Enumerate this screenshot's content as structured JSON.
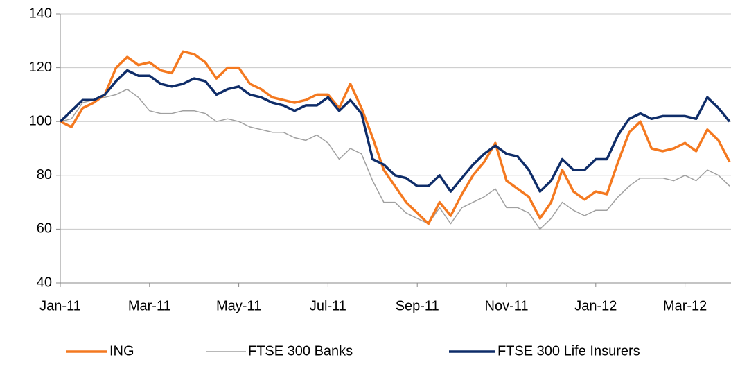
{
  "chart_data": {
    "type": "line",
    "categories": [
      "Jan-11",
      null,
      null,
      null,
      null,
      null,
      null,
      null,
      "Mar-11",
      null,
      null,
      null,
      null,
      null,
      null,
      null,
      "May-11",
      null,
      null,
      null,
      null,
      null,
      null,
      null,
      "Jul-11",
      null,
      null,
      null,
      null,
      null,
      null,
      null,
      "Sep-11",
      null,
      null,
      null,
      null,
      null,
      null,
      null,
      "Nov-11",
      null,
      null,
      null,
      null,
      null,
      null,
      null,
      "Jan-12",
      null,
      null,
      null,
      null,
      null,
      null,
      null,
      "Mar-12",
      null,
      null,
      null,
      null
    ],
    "series": [
      {
        "name": "ING",
        "color": "#f47920",
        "values": [
          100,
          98,
          105,
          107,
          110,
          120,
          124,
          121,
          122,
          119,
          118,
          126,
          125,
          122,
          116,
          120,
          120,
          114,
          112,
          109,
          108,
          107,
          108,
          110,
          110,
          105,
          114,
          105,
          94,
          82,
          76,
          70,
          66,
          62,
          70,
          65,
          73,
          80,
          85,
          92,
          78,
          75,
          72,
          64,
          70,
          82,
          74,
          71,
          74,
          73,
          85,
          96,
          100,
          90,
          89,
          90,
          92,
          89,
          97,
          93,
          85
        ]
      },
      {
        "name": "FTSE 300 Banks",
        "color": "#a0a0a0",
        "values": [
          100,
          101,
          107,
          108,
          109,
          110,
          112,
          109,
          104,
          103,
          103,
          104,
          104,
          103,
          100,
          101,
          100,
          98,
          97,
          96,
          96,
          94,
          93,
          95,
          92,
          86,
          90,
          88,
          78,
          70,
          70,
          66,
          64,
          62,
          68,
          62,
          68,
          70,
          72,
          75,
          68,
          68,
          66,
          60,
          64,
          70,
          67,
          65,
          67,
          67,
          72,
          76,
          79,
          79,
          79,
          78,
          80,
          78,
          82,
          80,
          76
        ]
      },
      {
        "name": "FTSE 300 Life Insurers",
        "color": "#0f2d69",
        "values": [
          100,
          104,
          108,
          108,
          110,
          115,
          119,
          117,
          117,
          114,
          113,
          114,
          116,
          115,
          110,
          112,
          113,
          110,
          109,
          107,
          106,
          104,
          106,
          106,
          109,
          104,
          108,
          103,
          86,
          84,
          80,
          79,
          76,
          76,
          80,
          74,
          79,
          84,
          88,
          91,
          88,
          87,
          82,
          74,
          78,
          86,
          82,
          82,
          86,
          86,
          95,
          101,
          103,
          101,
          102,
          102,
          102,
          101,
          109,
          105,
          100
        ]
      }
    ],
    "ylim": [
      40,
      140
    ],
    "yticks": [
      40,
      60,
      80,
      100,
      120,
      140
    ],
    "grid": true,
    "legend": "bottom"
  }
}
